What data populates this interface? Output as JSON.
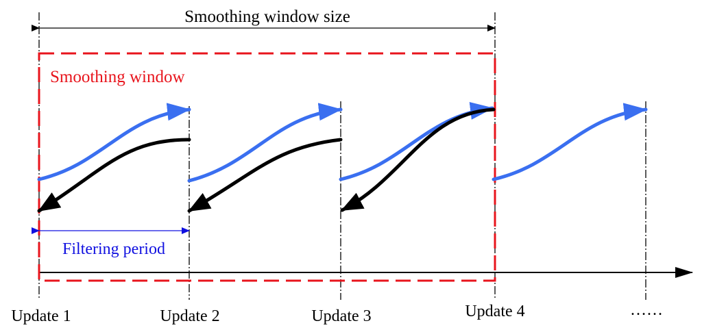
{
  "title": "Smoothing window size",
  "smoothing_window_label": "Smoothing window",
  "filtering_period_label": "Filtering period",
  "updates": [
    "Update 1",
    "Update 2",
    "Update 3",
    "Update 4"
  ],
  "ellipsis": "……",
  "colors": {
    "window": "#e8141c",
    "forward": "#3a6ff0",
    "backward": "#000000",
    "period": "#1010e0"
  }
}
